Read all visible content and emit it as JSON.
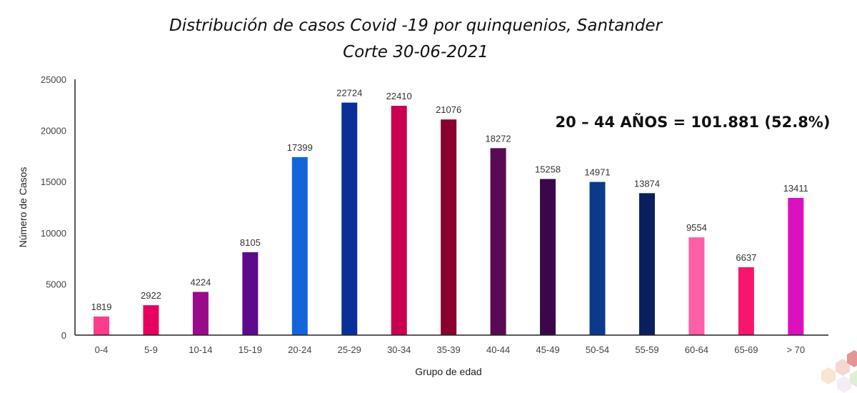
{
  "chart_data": {
    "type": "bar",
    "title": "Distribución de casos Covid -19 por quinquenios, Santander",
    "subtitle": "Corte 30-06-2021",
    "xlabel": "Grupo de edad",
    "ylabel": "Número de Casos",
    "ylim": [
      0,
      25000
    ],
    "yticks": [
      0,
      5000,
      10000,
      15000,
      20000,
      25000
    ],
    "grid": false,
    "categories": [
      "0-4",
      "5-9",
      "10-14",
      "15-19",
      "20-24",
      "25-29",
      "30-34",
      "35-39",
      "40-44",
      "45-49",
      "50-54",
      "55-59",
      "60-64",
      "65-69",
      "> 70"
    ],
    "values": [
      1819,
      2922,
      4224,
      8105,
      17399,
      22724,
      22410,
      21076,
      18272,
      15258,
      14971,
      13874,
      9554,
      6637,
      13411
    ],
    "colors": [
      "#fb3d8c",
      "#e8005f",
      "#9c0a8c",
      "#5e0a8a",
      "#1565d8",
      "#0a2f9a",
      "#c8004f",
      "#8a0030",
      "#5a0a55",
      "#3a0848",
      "#0b3a8a",
      "#0a1f5e",
      "#ff5ea8",
      "#f8156e",
      "#dd10c0"
    ],
    "annotation": "20 – 44 AÑOS = 101.881 (52.8%)"
  }
}
